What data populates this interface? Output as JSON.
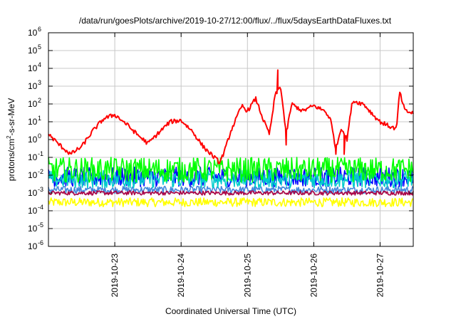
{
  "chart_data": {
    "type": "line",
    "title": "/data/run/goesPlots/archive/2019-10-27/12:00/flux/../flux/5daysEarthDataFluxes.txt",
    "xlabel": "Coordinated Universal Time (UTC)",
    "ylabel_parts": {
      "before": "protons/cm",
      "sup": "2",
      "after": "-s-sr-MeV"
    },
    "yscale": "log",
    "ylim": [
      1e-06,
      1000000.0
    ],
    "xlim": [
      "2019-10-22 00:00",
      "2019-10-27 12:00"
    ],
    "grid": true,
    "legend": "none",
    "y_ticks": [
      {
        "v": 1e-06,
        "base": "10",
        "exp": "-6"
      },
      {
        "v": 1e-05,
        "base": "10",
        "exp": "-5"
      },
      {
        "v": 0.0001,
        "base": "10",
        "exp": "-4"
      },
      {
        "v": 0.001,
        "base": "10",
        "exp": "-3"
      },
      {
        "v": 0.01,
        "base": "10",
        "exp": "-2"
      },
      {
        "v": 0.1,
        "base": "10",
        "exp": "-1"
      },
      {
        "v": 1.0,
        "base": "10",
        "exp": "0"
      },
      {
        "v": 10.0,
        "base": "10",
        "exp": "1"
      },
      {
        "v": 100.0,
        "base": "10",
        "exp": "2"
      },
      {
        "v": 1000.0,
        "base": "10",
        "exp": "3"
      },
      {
        "v": 10000.0,
        "base": "10",
        "exp": "4"
      },
      {
        "v": 100000.0,
        "base": "10",
        "exp": "5"
      },
      {
        "v": 1000000.0,
        "base": "10",
        "exp": "6"
      }
    ],
    "x_ticks": [
      {
        "x": "2019-10-23 00:00",
        "label": "2019-10-23"
      },
      {
        "x": "2019-10-24 00:00",
        "label": "2019-10-24"
      },
      {
        "x": "2019-10-25 00:00",
        "label": "2019-10-25"
      },
      {
        "x": "2019-10-26 00:00",
        "label": "2019-10-26"
      },
      {
        "x": "2019-10-27 00:00",
        "label": "2019-10-27"
      }
    ],
    "series": [
      {
        "color": "#ff0000",
        "noise": 0.12,
        "points": [
          [
            "2019-10-22 00:00",
            2
          ],
          [
            "2019-10-22 04:00",
            0.5
          ],
          [
            "2019-10-22 08:00",
            0.15
          ],
          [
            "2019-10-22 12:00",
            0.4
          ],
          [
            "2019-10-22 16:00",
            3
          ],
          [
            "2019-10-22 20:00",
            15
          ],
          [
            "2019-10-23 00:00",
            25
          ],
          [
            "2019-10-23 04:00",
            8
          ],
          [
            "2019-10-23 08:00",
            2
          ],
          [
            "2019-10-23 12:00",
            0.6
          ],
          [
            "2019-10-23 16:00",
            2.5
          ],
          [
            "2019-10-23 20:00",
            10
          ],
          [
            "2019-10-24 00:00",
            12
          ],
          [
            "2019-10-24 04:00",
            3
          ],
          [
            "2019-10-24 08:00",
            0.4
          ],
          [
            "2019-10-24 12:00",
            0.1
          ],
          [
            "2019-10-24 14:00",
            0.05
          ],
          [
            "2019-10-24 16:00",
            0.3
          ],
          [
            "2019-10-24 18:00",
            3
          ],
          [
            "2019-10-24 22:00",
            80
          ],
          [
            "2019-10-25 00:00",
            40
          ],
          [
            "2019-10-25 03:00",
            200
          ],
          [
            "2019-10-25 06:00",
            10
          ],
          [
            "2019-10-25 08:00",
            2
          ],
          [
            "2019-10-25 10:00",
            300
          ],
          [
            "2019-10-25 12:00",
            1000
          ],
          [
            "2019-10-25 14:00",
            2
          ],
          [
            "2019-10-25 16:00",
            100
          ],
          [
            "2019-10-25 20:00",
            40
          ],
          [
            "2019-10-26 00:00",
            80
          ],
          [
            "2019-10-26 04:00",
            40
          ],
          [
            "2019-10-26 06:00",
            15
          ],
          [
            "2019-10-26 08:00",
            0.3
          ],
          [
            "2019-10-26 10:00",
            5
          ],
          [
            "2019-10-26 12:00",
            1
          ],
          [
            "2019-10-26 14:00",
            150
          ],
          [
            "2019-10-26 18:00",
            100
          ],
          [
            "2019-10-26 22:00",
            20
          ],
          [
            "2019-10-27 00:00",
            10
          ],
          [
            "2019-10-27 04:00",
            5
          ],
          [
            "2019-10-27 06:00",
            4
          ],
          [
            "2019-10-27 07:00",
            500
          ],
          [
            "2019-10-27 09:00",
            40
          ],
          [
            "2019-10-27 12:00",
            30
          ]
        ],
        "spikes": [
          [
            "2019-10-25 11:00",
            8000
          ],
          [
            "2019-10-25 14:00",
            0.5
          ],
          [
            "2019-10-26 08:00",
            0.15
          ],
          [
            "2019-10-26 11:00",
            0.15
          ]
        ]
      },
      {
        "color": "#00ff00",
        "level": 0.02,
        "noise": 0.7
      },
      {
        "color": "#00cccc",
        "level": 0.006,
        "noise": 0.5
      },
      {
        "color": "#0000ff",
        "level": 0.008,
        "noise": 0.55
      },
      {
        "color": "#aa0044",
        "level": 0.001,
        "noise": 0.12
      },
      {
        "color": "#4488dd",
        "level": 0.0015,
        "noise": 0.2
      },
      {
        "color": "#ffff00",
        "level": 0.0003,
        "noise": 0.25
      }
    ]
  }
}
